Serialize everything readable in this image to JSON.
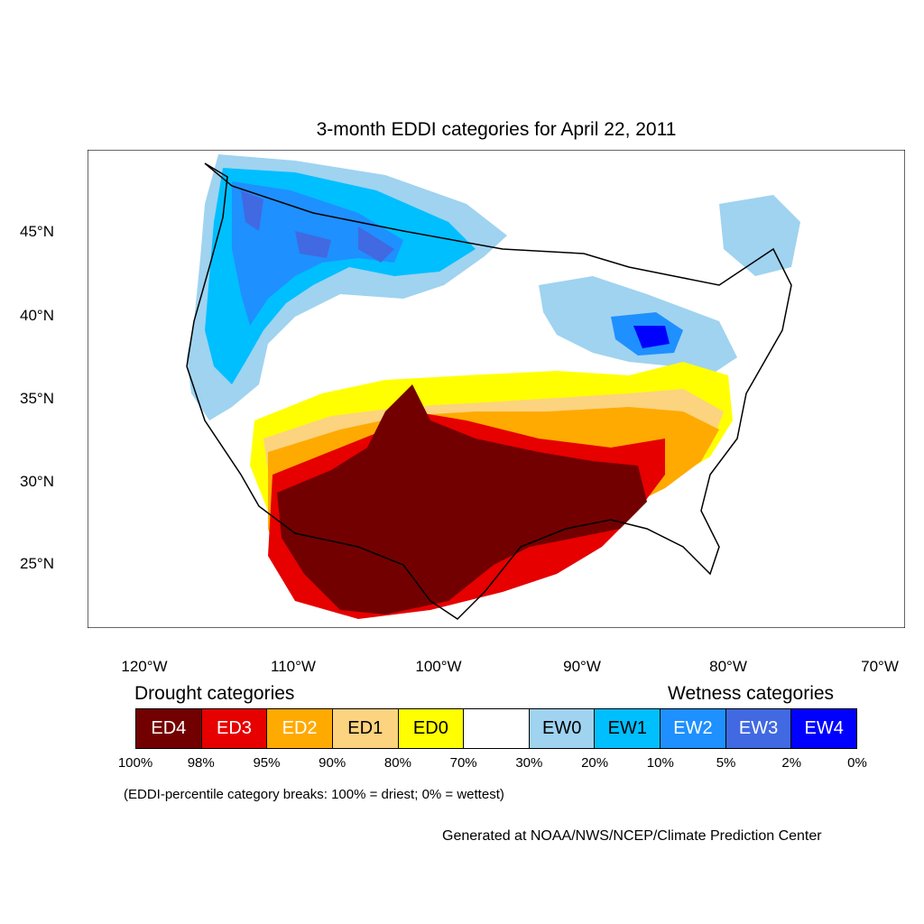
{
  "title": "3-month EDDI categories for April 22, 2011",
  "latitude_labels": [
    "45°N",
    "40°N",
    "35°N",
    "30°N",
    "25°N"
  ],
  "longitude_labels": [
    "120°W",
    "110°W",
    "100°W",
    "90°W",
    "80°W",
    "70°W"
  ],
  "legend": {
    "drought_heading": "Drought categories",
    "wetness_heading": "Wetness categories",
    "categories": [
      {
        "label": "ED4",
        "color": "#730000",
        "text_color": "#ffffff"
      },
      {
        "label": "ED3",
        "color": "#e60000",
        "text_color": "#ffffff"
      },
      {
        "label": "ED2",
        "color": "#ffaa00",
        "text_color": "#ffffff"
      },
      {
        "label": "ED1",
        "color": "#fcd37f",
        "text_color": "#000000"
      },
      {
        "label": "ED0",
        "color": "#ffff00",
        "text_color": "#000000"
      },
      {
        "label": "",
        "color": "#ffffff",
        "text_color": "#000000"
      },
      {
        "label": "EW0",
        "color": "#9fd3f0",
        "text_color": "#000000"
      },
      {
        "label": "EW1",
        "color": "#00bfff",
        "text_color": "#000000"
      },
      {
        "label": "EW2",
        "color": "#1e90ff",
        "text_color": "#ffffff"
      },
      {
        "label": "EW3",
        "color": "#4169e1",
        "text_color": "#ffffff"
      },
      {
        "label": "EW4",
        "color": "#0000ff",
        "text_color": "#ffffff"
      }
    ],
    "breaks": [
      "100%",
      "98%",
      "95%",
      "90%",
      "80%",
      "70%",
      "30%",
      "20%",
      "10%",
      "5%",
      "2%",
      "0%"
    ]
  },
  "note": "(EDDI-percentile category breaks: 100% = driest; 0% = wettest)",
  "credit": "Generated at NOAA/NWS/NCEP/Climate Prediction Center"
}
